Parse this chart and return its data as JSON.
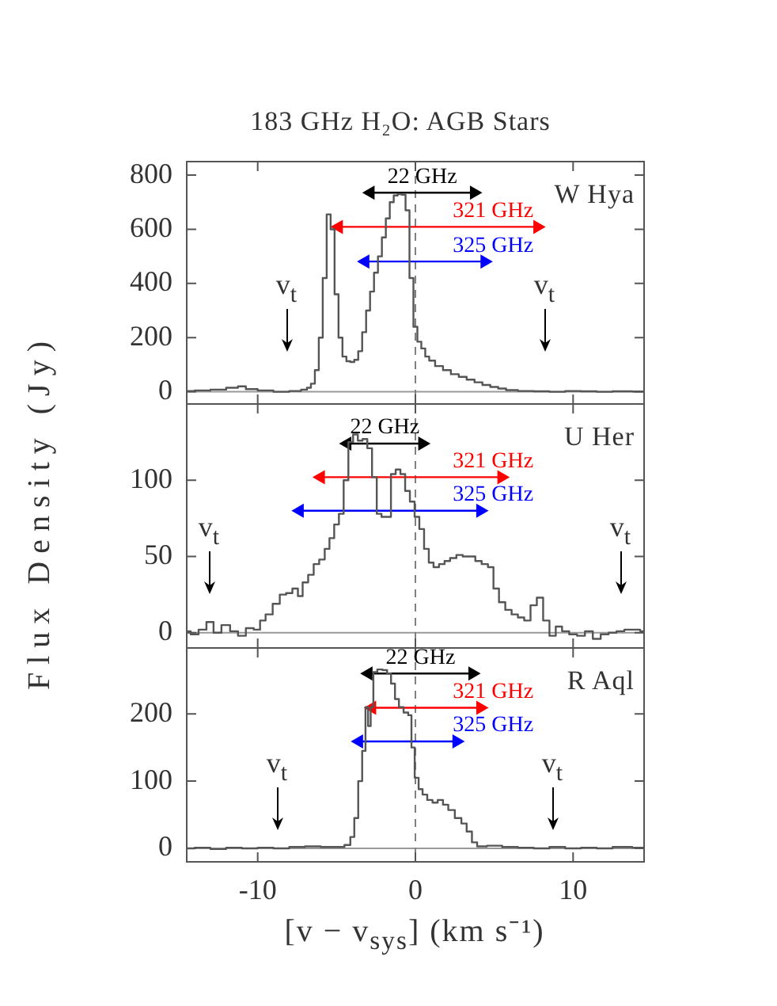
{
  "chart_data": [
    {
      "type": "step",
      "title": "183 GHz H₂O: AGB Stars",
      "annotations": [
        "W Hya",
        "v$_{t}$",
        "v$_{t}$"
      ],
      "xlim": [
        -14.5,
        14.5
      ],
      "xticks": [
        -10,
        0,
        10
      ],
      "ylim": [
        -45,
        850
      ],
      "yticks": [
        0,
        200,
        400,
        600,
        800
      ],
      "tick_labels": "y",
      "ref_lines": [
        {
          "axis": "y",
          "value": 0,
          "color": "#999999"
        },
        {
          "axis": "x",
          "value": 0,
          "color": "#808080",
          "line_style": "dashed"
        }
      ],
      "series": [
        {
          "color": "#555555",
          "marker": "none",
          "x": [
            -14.5,
            -13.5,
            -12.5,
            -11.5,
            -11,
            -10.5,
            -9.5,
            -8.5,
            -7.5,
            -7,
            -6.75,
            -6.5,
            -6.25,
            -6,
            -5.75,
            -5.5,
            -5.25,
            -5,
            -4.75,
            -4.5,
            -4.25,
            -4,
            -3.75,
            -3.5,
            -3.25,
            -3,
            -2.75,
            -2.5,
            -2.25,
            -2,
            -1.75,
            -1.5,
            -1.25,
            -1,
            -0.75,
            -0.5,
            -0.25,
            0,
            0.25,
            0.5,
            0.75,
            1,
            1.5,
            2,
            2.5,
            3,
            3.5,
            4,
            4.5,
            5,
            5.5,
            6,
            7,
            8,
            9,
            10,
            11,
            12,
            13,
            14.5
          ],
          "values": [
            3,
            5,
            8,
            15,
            20,
            10,
            5,
            0,
            3,
            8,
            15,
            30,
            80,
            200,
            420,
            655,
            600,
            360,
            200,
            130,
            113,
            110,
            118,
            150,
            220,
            300,
            370,
            440,
            500,
            570,
            640,
            700,
            725,
            730,
            728,
            670,
            420,
            240,
            185,
            160,
            130,
            115,
            95,
            80,
            65,
            55,
            45,
            35,
            25,
            18,
            12,
            6,
            3,
            2,
            0,
            3,
            2,
            0,
            2,
            1
          ]
        },
        {
          "type": "line",
          "name": "22 GHz",
          "color": "#000000",
          "marker": "triangle",
          "x": [
            -2.85,
            3.72
          ],
          "values": [
            735,
            735
          ]
        },
        {
          "type": "line",
          "name": "321 GHz",
          "color": "#ff0000",
          "marker": "triangle",
          "x": [
            -4.86,
            7.74
          ],
          "values": [
            609,
            609
          ]
        },
        {
          "type": "line",
          "name": "325 GHz",
          "color": "#0000ff",
          "marker": "triangle",
          "x": [
            -3.18,
            4.39
          ],
          "values": [
            481,
            481
          ]
        }
      ]
    },
    {
      "type": "step",
      "ylabel": "Flux Density (Jy)",
      "annotations": [
        "U Her",
        "v$_{t}$",
        "v$_{t}$"
      ],
      "xlim": [
        -14.5,
        14.5
      ],
      "xticks": [
        -10,
        0,
        10
      ],
      "ylim": [
        -10,
        150
      ],
      "yticks": [
        0,
        50,
        100
      ],
      "tick_labels": "y",
      "ref_lines": [
        {
          "axis": "y",
          "value": 0,
          "color": "#999999"
        },
        {
          "axis": "x",
          "value": 0,
          "color": "#808080",
          "line_style": "dashed"
        }
      ],
      "series": [
        {
          "color": "#555555",
          "marker": "none",
          "x": [
            -14.5,
            -14,
            -13.5,
            -13,
            -12.6,
            -12,
            -11.5,
            -11,
            -10.5,
            -10,
            -9.7,
            -9.3,
            -8.8,
            -8.4,
            -8,
            -7.6,
            -7.3,
            -7,
            -6.6,
            -6.3,
            -5.9,
            -5.6,
            -5.3,
            -5,
            -4.7,
            -4.4,
            -4.1,
            -3.8,
            -3.5,
            -3.2,
            -2.9,
            -2.6,
            -2.3,
            -2,
            -1.7,
            -1.4,
            -1.1,
            -0.8,
            -0.5,
            -0.2,
            0.1,
            0.4,
            0.7,
            1,
            1.3,
            1.7,
            2,
            2.4,
            2.8,
            3.2,
            3.6,
            4,
            4.4,
            4.8,
            5.1,
            5.5,
            5.9,
            6.3,
            6.7,
            7.1,
            7.5,
            7.9,
            8.3,
            8.7,
            9.1,
            9.5,
            10,
            10.5,
            11,
            11.5,
            12,
            12.5,
            13,
            13.5,
            14,
            14.5
          ],
          "values": [
            1,
            -1,
            2,
            7,
            0,
            5,
            1,
            -2,
            3,
            2,
            8,
            12,
            19,
            25,
            26,
            29,
            24,
            33,
            38,
            45,
            48,
            55,
            62,
            71,
            78,
            100,
            125,
            130,
            126,
            127,
            121,
            102,
            78,
            76,
            76,
            104,
            107,
            104,
            93,
            86,
            76,
            68,
            55,
            46,
            43,
            45,
            47,
            49,
            51,
            50,
            50,
            47,
            45,
            43,
            29,
            20,
            15,
            12,
            10,
            8,
            18,
            23,
            8,
            -2,
            4,
            1,
            -1,
            -2,
            1,
            -4,
            -1,
            0,
            1,
            2,
            2,
            1
          ]
        },
        {
          "type": "line",
          "name": "22 GHz",
          "color": "#000000",
          "marker": "triangle",
          "x": [
            -4.32,
            0.44
          ],
          "values": [
            124,
            124
          ]
        },
        {
          "type": "line",
          "name": "321 GHz",
          "color": "#ff0000",
          "marker": "triangle",
          "x": [
            -6.0,
            5.46
          ],
          "values": [
            102,
            102
          ]
        },
        {
          "type": "line",
          "name": "325 GHz",
          "color": "#0000ff",
          "marker": "triangle",
          "x": [
            -7.34,
            4.12
          ],
          "values": [
            80,
            80
          ]
        }
      ]
    },
    {
      "type": "step",
      "xlabel": "[v − v$_{sys}$] (km s⁻¹)",
      "annotations": [
        "R Aql",
        "v$_{t}$",
        "v$_{t}$"
      ],
      "xlim": [
        -14.5,
        14.5
      ],
      "xticks": [
        -10,
        0,
        10
      ],
      "ylim": [
        -20,
        298
      ],
      "yticks": [
        0,
        100,
        200
      ],
      "ref_lines": [
        {
          "axis": "y",
          "value": 0,
          "color": "#999999"
        },
        {
          "axis": "x",
          "value": 0,
          "color": "#808080",
          "line_style": "dashed"
        }
      ],
      "series": [
        {
          "color": "#555555",
          "marker": "none",
          "x": [
            -14.5,
            -13.5,
            -12.5,
            -11.5,
            -10.5,
            -9.5,
            -8.5,
            -7.5,
            -6.5,
            -5.5,
            -4.75,
            -4.25,
            -4,
            -3.75,
            -3.5,
            -3.25,
            -3.08,
            -2.92,
            -2.75,
            -2.58,
            -2.25,
            -1.92,
            -1.67,
            -1.42,
            -1.17,
            -0.92,
            -0.58,
            -0.33,
            -0.17,
            0.08,
            0.33,
            0.58,
            0.92,
            1.25,
            1.58,
            1.92,
            2.25,
            2.75,
            3.08,
            3.42,
            3.75,
            4.08,
            5,
            6,
            7,
            8,
            9,
            10,
            11,
            12,
            13,
            14.5
          ],
          "values": [
            0,
            1,
            -1,
            1,
            0,
            1,
            0,
            2,
            3,
            2,
            2,
            5,
            17,
            45,
            100,
            145,
            210,
            182,
            210,
            262,
            266,
            265,
            260,
            245,
            222,
            210,
            202,
            198,
            150,
            105,
            88,
            80,
            72,
            68,
            72,
            65,
            57,
            45,
            37,
            25,
            9,
            3,
            4,
            2,
            1,
            0,
            2,
            0,
            1,
            0,
            2,
            1
          ]
        },
        {
          "type": "line",
          "name": "22 GHz",
          "color": "#000000",
          "marker": "triangle",
          "x": [
            -2.98,
            3.62
          ],
          "values": [
            260,
            260
          ]
        },
        {
          "type": "line",
          "name": "321 GHz",
          "color": "#ff0000",
          "marker": "triangle",
          "x": [
            -2.75,
            4.12
          ],
          "values": [
            209,
            209
          ]
        },
        {
          "type": "line",
          "name": "325 GHz",
          "color": "#0000ff",
          "marker": "triangle",
          "x": [
            -3.58,
            2.61
          ],
          "values": [
            159,
            159
          ]
        }
      ]
    }
  ]
}
